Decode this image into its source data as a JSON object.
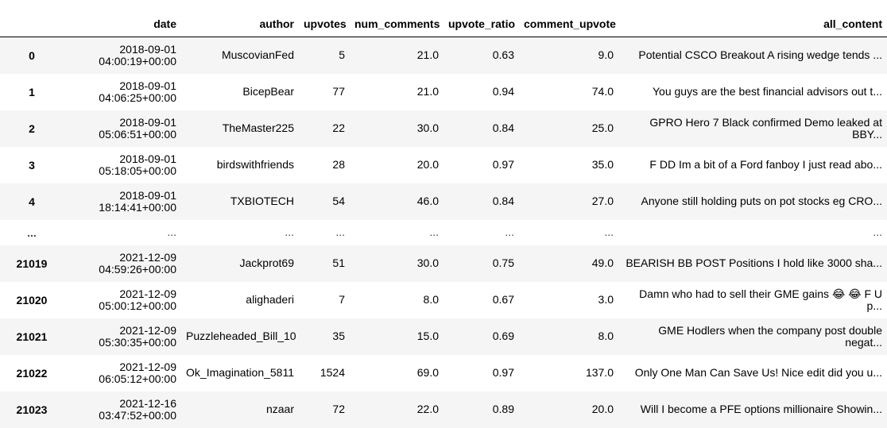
{
  "table": {
    "columns": [
      "date",
      "author",
      "upvotes",
      "num_comments",
      "upvote_ratio",
      "comment_upvote",
      "all_content"
    ],
    "rows": [
      {
        "index": "0",
        "date_line1": "2018-09-01",
        "date_line2": "04:00:19+00:00",
        "author": "MuscovianFed",
        "upvotes": "5",
        "num_comments": "21.0",
        "upvote_ratio": "0.63",
        "comment_upvote": "9.0",
        "content_line1": "Potential CSCO Breakout A rising wedge tends ...",
        "content_line2": ""
      },
      {
        "index": "1",
        "date_line1": "2018-09-01",
        "date_line2": "04:06:25+00:00",
        "author": "BicepBear",
        "upvotes": "77",
        "num_comments": "21.0",
        "upvote_ratio": "0.94",
        "comment_upvote": "74.0",
        "content_line1": "You guys are the best financial advisors out t...",
        "content_line2": ""
      },
      {
        "index": "2",
        "date_line1": "2018-09-01",
        "date_line2": "05:06:51+00:00",
        "author": "TheMaster225",
        "upvotes": "22",
        "num_comments": "30.0",
        "upvote_ratio": "0.84",
        "comment_upvote": "25.0",
        "content_line1": "GPRO Hero 7 Black confirmed Demo leaked at",
        "content_line2": "BBY..."
      },
      {
        "index": "3",
        "date_line1": "2018-09-01",
        "date_line2": "05:18:05+00:00",
        "author": "birdswithfriends",
        "upvotes": "28",
        "num_comments": "20.0",
        "upvote_ratio": "0.97",
        "comment_upvote": "35.0",
        "content_line1": "F DD Im a bit of a Ford fanboy I just read abo...",
        "content_line2": ""
      },
      {
        "index": "4",
        "date_line1": "2018-09-01",
        "date_line2": "18:14:41+00:00",
        "author": "TXBIOTECH",
        "upvotes": "54",
        "num_comments": "46.0",
        "upvote_ratio": "0.84",
        "comment_upvote": "27.0",
        "content_line1": "Anyone still holding puts on pot stocks eg CRO...",
        "content_line2": ""
      },
      {
        "index": "...",
        "date_line1": "...",
        "date_line2": "",
        "author": "...",
        "upvotes": "...",
        "num_comments": "...",
        "upvote_ratio": "...",
        "comment_upvote": "...",
        "content_line1": "...",
        "content_line2": "",
        "ellipsis": true
      },
      {
        "index": "21019",
        "date_line1": "2021-12-09",
        "date_line2": "04:59:26+00:00",
        "author": "Jackprot69",
        "upvotes": "51",
        "num_comments": "30.0",
        "upvote_ratio": "0.75",
        "comment_upvote": "49.0",
        "content_line1": "BEARISH BB POST Positions I hold like 3000 sha...",
        "content_line2": ""
      },
      {
        "index": "21020",
        "date_line1": "2021-12-09",
        "date_line2": "05:00:12+00:00",
        "author": "alighaderi",
        "upvotes": "7",
        "num_comments": "8.0",
        "upvote_ratio": "0.67",
        "comment_upvote": "3.0",
        "content_line1": "Damn who had to sell their GME gains 😂 😂 F U",
        "content_line2": "p..."
      },
      {
        "index": "21021",
        "date_line1": "2021-12-09",
        "date_line2": "05:30:35+00:00",
        "author": "Puzzleheaded_Bill_10",
        "upvotes": "35",
        "num_comments": "15.0",
        "upvote_ratio": "0.69",
        "comment_upvote": "8.0",
        "content_line1": "GME Hodlers when the company post double",
        "content_line2": "negat..."
      },
      {
        "index": "21022",
        "date_line1": "2021-12-09",
        "date_line2": "06:05:12+00:00",
        "author": "Ok_Imagination_5811",
        "upvotes": "1524",
        "num_comments": "69.0",
        "upvote_ratio": "0.97",
        "comment_upvote": "137.0",
        "content_line1": "Only One Man Can Save Us! Nice edit did you u...",
        "content_line2": ""
      },
      {
        "index": "21023",
        "date_line1": "2021-12-16",
        "date_line2": "03:47:52+00:00",
        "author": "nzaar",
        "upvotes": "72",
        "num_comments": "22.0",
        "upvote_ratio": "0.89",
        "comment_upvote": "20.0",
        "content_line1": "Will I become a PFE options millionaire Showin...",
        "content_line2": ""
      }
    ]
  }
}
